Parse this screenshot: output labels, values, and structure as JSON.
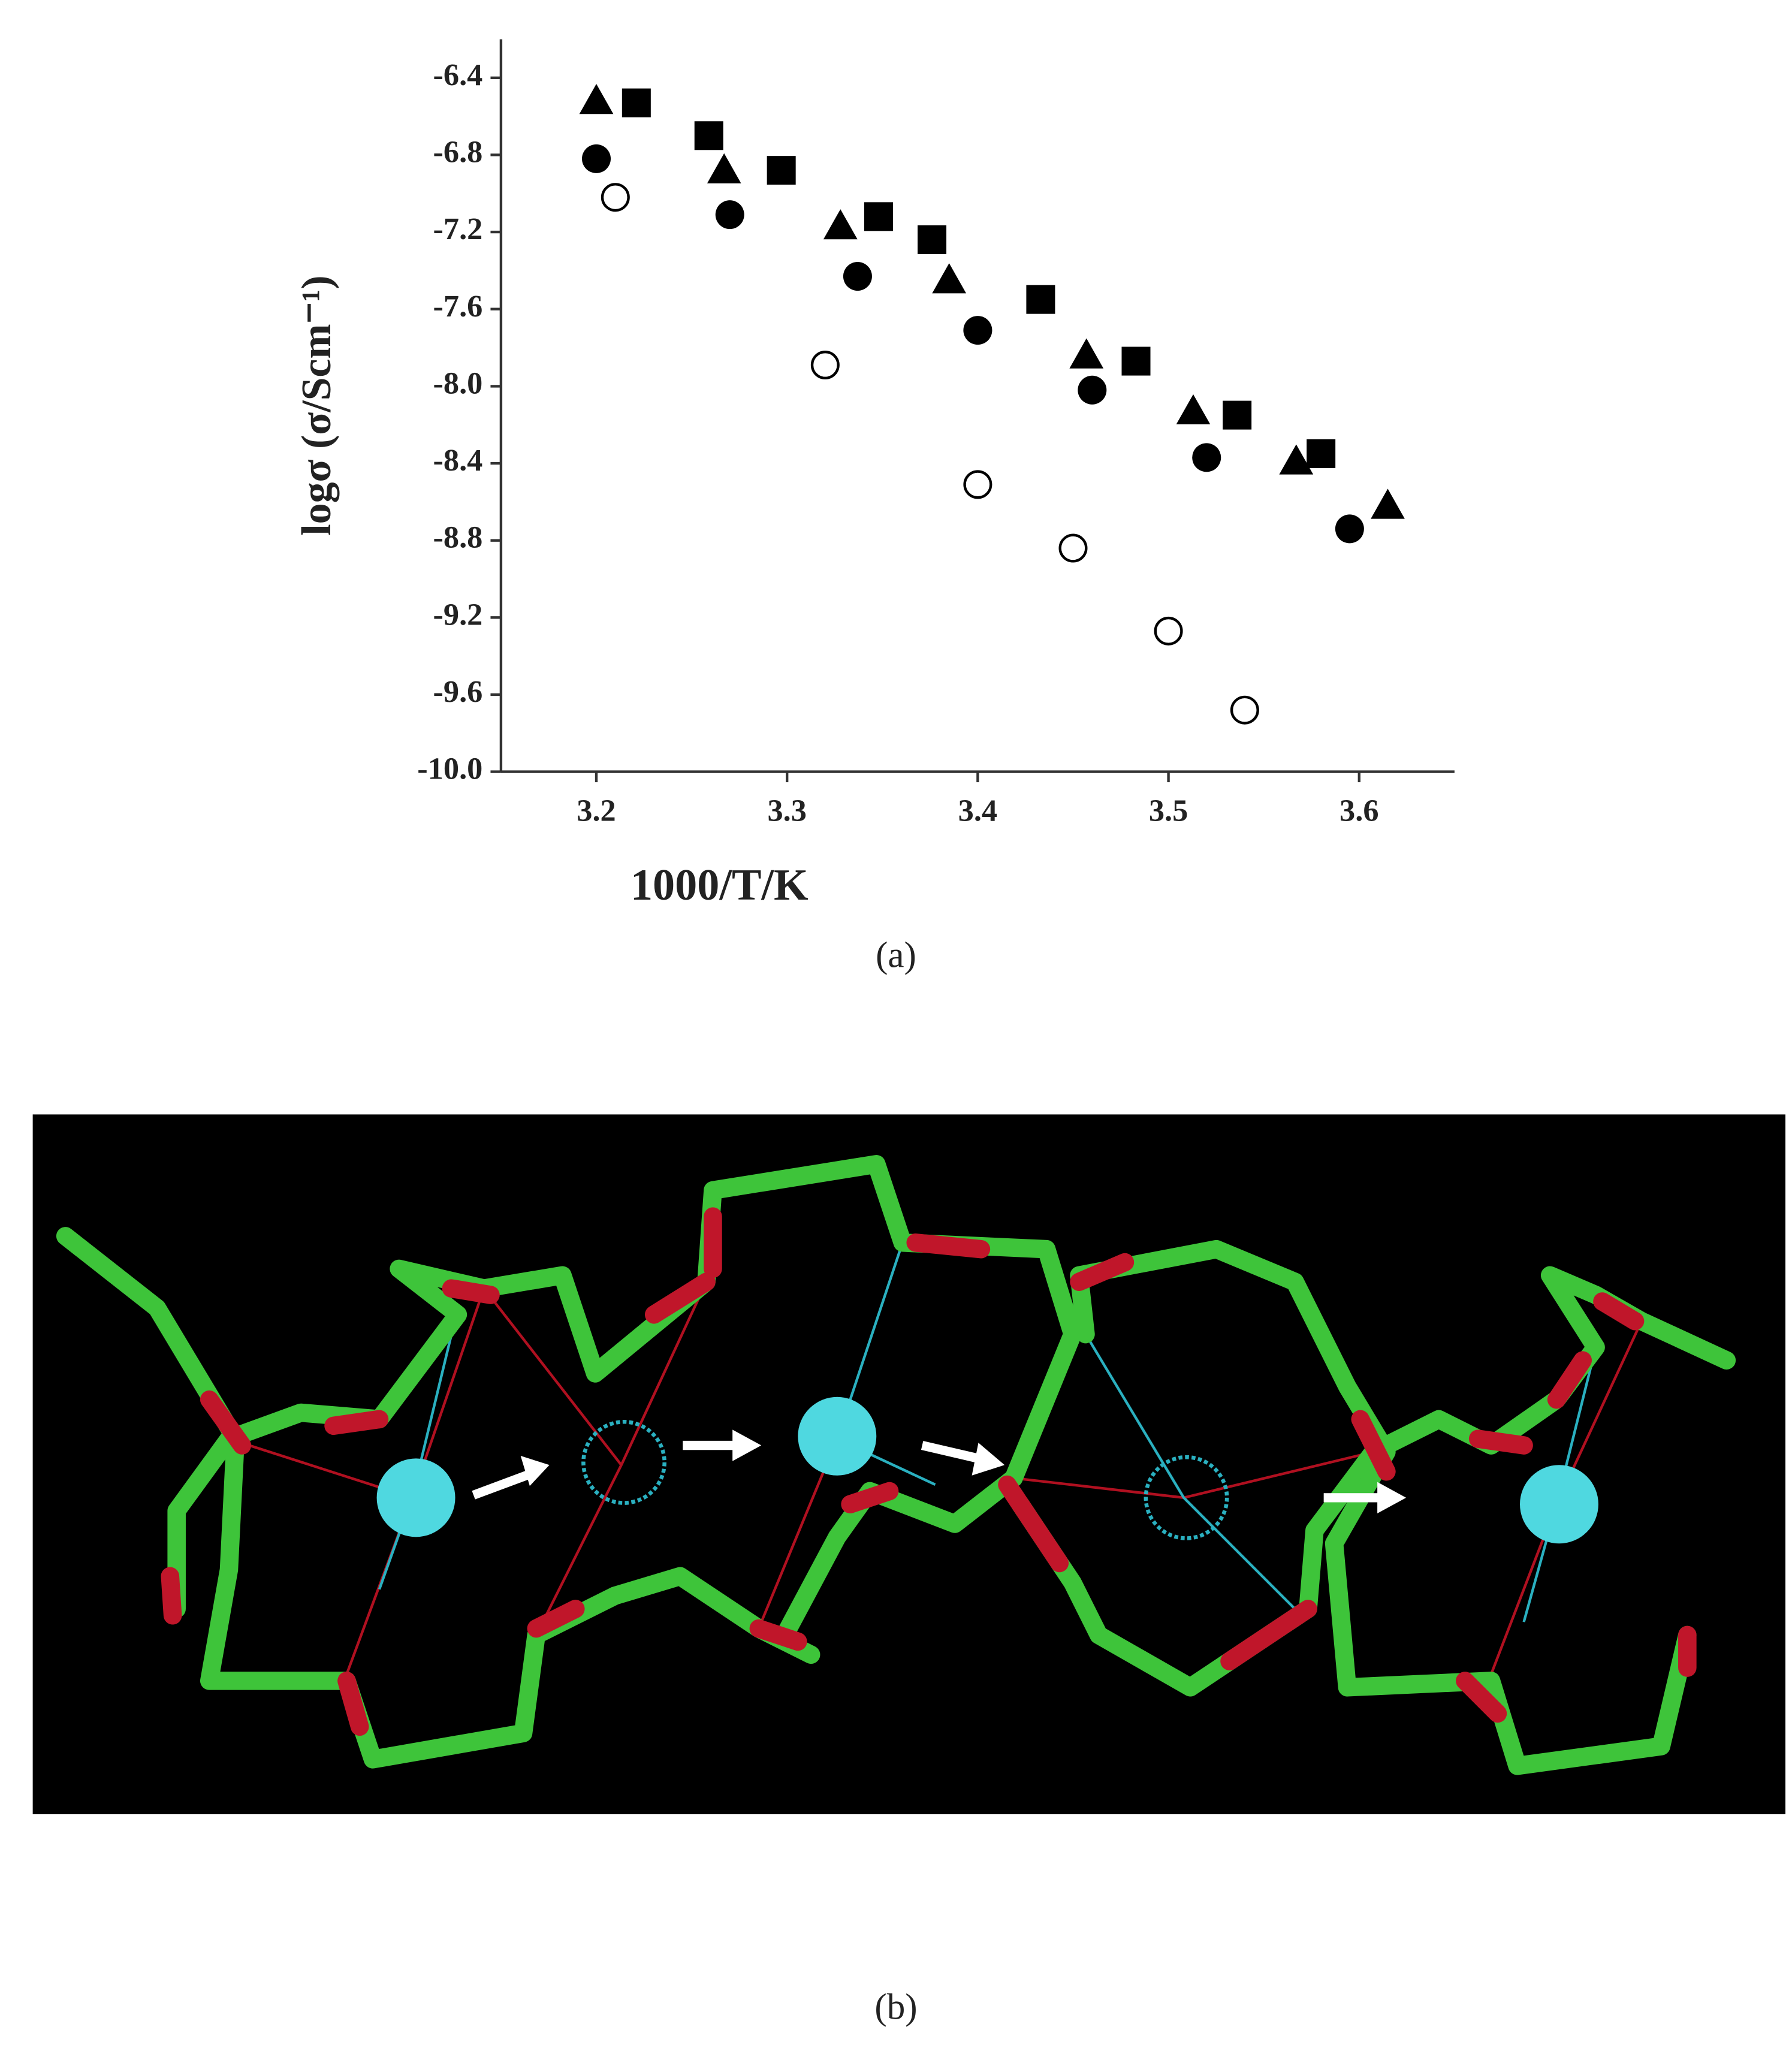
{
  "chart_data": {
    "type": "scatter",
    "xlabel": "1000/T/K",
    "ylabel": "logσ (σ/Scm⁻¹)",
    "xlim": [
      3.15,
      3.65
    ],
    "xticks": [
      3.2,
      3.3,
      3.4,
      3.5,
      3.6
    ],
    "ylim": [
      -10.0,
      -6.2
    ],
    "yticks": [
      -6.4,
      -6.8,
      -7.2,
      -7.6,
      {
        "value": -8,
        "label": "-8.0"
      },
      -8.4,
      -8.8,
      -9.2,
      -9.6,
      {
        "value": -10,
        "label": "-10.0"
      }
    ],
    "series": [
      {
        "marker": "square",
        "color": "#000000",
        "x": [
          3.221,
          3.259,
          3.297,
          3.348,
          3.376,
          3.433,
          3.483,
          3.536,
          3.58
        ],
        "values": [
          -6.53,
          -6.7,
          -6.88,
          -7.12,
          -7.24,
          -7.55,
          -7.87,
          -8.15,
          -8.35
        ]
      },
      {
        "marker": "triangle",
        "color": "#000000",
        "x": [
          3.2,
          3.267,
          3.328,
          3.385,
          3.457,
          3.513,
          3.567,
          3.615
        ],
        "values": [
          -6.52,
          -6.88,
          -7.17,
          -7.45,
          -7.84,
          -8.13,
          -8.39,
          -8.62
        ]
      },
      {
        "marker": "circle",
        "color": "#000000",
        "x": [
          3.2,
          3.27,
          3.337,
          3.4,
          3.46,
          3.52,
          3.595
        ],
        "values": [
          -6.82,
          -7.11,
          -7.43,
          -7.71,
          -8.02,
          -8.37,
          -8.74
        ]
      },
      {
        "marker": "open-circle",
        "color": "#000000",
        "x": [
          3.21,
          3.32,
          3.4,
          3.45,
          3.5,
          3.54
        ],
        "values": [
          -7.02,
          -7.89,
          -8.51,
          -8.84,
          -9.27,
          -9.68
        ]
      }
    ]
  },
  "captions": [
    "(a)",
    "(b)"
  ]
}
